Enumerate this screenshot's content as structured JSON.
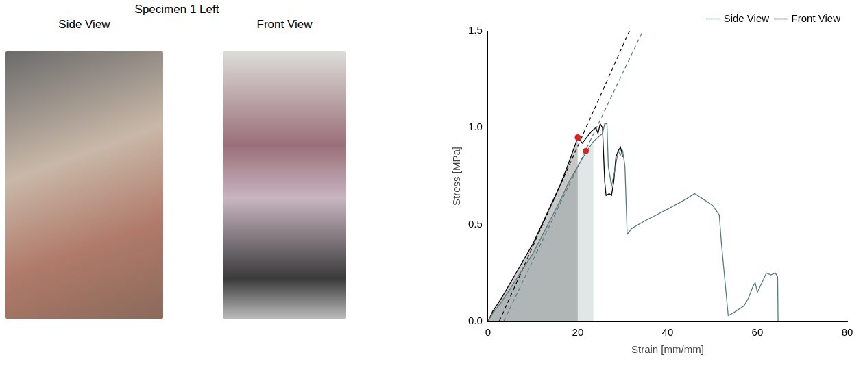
{
  "photos": {
    "title": "Specimen 1 Left",
    "images": [
      {
        "label": "Side View"
      },
      {
        "label": "Front View"
      }
    ]
  },
  "chart_data": {
    "type": "line",
    "x_label": "Strain [mm/mm]",
    "y_label": "Stress [MPa]",
    "xlim": [
      0,
      80
    ],
    "xticks": [
      0,
      20,
      40,
      60,
      80
    ],
    "ylim": [
      0,
      1.5
    ],
    "yticks": [
      {
        "value": 0,
        "label": "0.0"
      },
      {
        "value": 0.5,
        "label": "0.5"
      },
      {
        "value": 1.0,
        "label": "1.0"
      },
      {
        "value": 1.5,
        "label": "1.5"
      }
    ],
    "grid": false,
    "legend": "top-right",
    "series": [
      {
        "name": "Side View",
        "color": "#5b7b7b",
        "line_style": "solid",
        "area_end": 23.5,
        "x": [
          0,
          1,
          3,
          5,
          8,
          10,
          12,
          14,
          16,
          18,
          20,
          22,
          23.5,
          24.5,
          25.5,
          26,
          26.5,
          26.8,
          27.5,
          28,
          29,
          29.5,
          30,
          30.5,
          31,
          32,
          35,
          40,
          44,
          46,
          48,
          50,
          51.5,
          52,
          53.5,
          55,
          57,
          58,
          59,
          59.5,
          60,
          61,
          62,
          63,
          64,
          64.5,
          64.6
        ],
        "values": [
          0,
          0.04,
          0.1,
          0.17,
          0.28,
          0.35,
          0.44,
          0.53,
          0.62,
          0.72,
          0.8,
          0.88,
          0.93,
          0.95,
          0.97,
          1.02,
          1.02,
          0.8,
          0.7,
          0.75,
          0.88,
          0.86,
          0.88,
          0.8,
          0.45,
          0.48,
          0.52,
          0.58,
          0.63,
          0.66,
          0.63,
          0.6,
          0.55,
          0.4,
          0.03,
          0.05,
          0.08,
          0.12,
          0.18,
          0.2,
          0.15,
          0.2,
          0.25,
          0.24,
          0.25,
          0.23,
          0
        ]
      },
      {
        "name": "Front View",
        "color": "#000000",
        "line_style": "solid",
        "area_end": 20,
        "x": [
          0,
          1,
          3,
          5,
          8,
          10,
          12,
          14,
          16,
          18,
          20,
          21,
          22,
          23,
          24,
          24.5,
          25,
          25.5,
          26,
          26.3,
          27,
          27.5,
          28,
          28.5,
          29,
          29.5,
          30
        ],
        "values": [
          0,
          0.05,
          0.12,
          0.2,
          0.32,
          0.4,
          0.5,
          0.6,
          0.7,
          0.82,
          0.95,
          0.92,
          0.95,
          0.98,
          1.0,
          0.97,
          1.02,
          1.0,
          0.72,
          0.65,
          0.66,
          0.65,
          0.72,
          0.85,
          0.88,
          0.9,
          0.85
        ]
      }
    ],
    "fit_lines": [
      {
        "color": "#000000",
        "line_style": "dashed",
        "x": [
          2.5,
          31.5
        ],
        "values": [
          0,
          1.5
        ]
      },
      {
        "color": "#5b7b7b",
        "line_style": "dashed",
        "x": [
          3.5,
          34.5
        ],
        "values": [
          0,
          1.5
        ]
      }
    ],
    "points": {
      "color": "#e02020",
      "marker": "circle",
      "x": [
        20,
        21.8
      ],
      "values": [
        0.95,
        0.88
      ]
    }
  }
}
